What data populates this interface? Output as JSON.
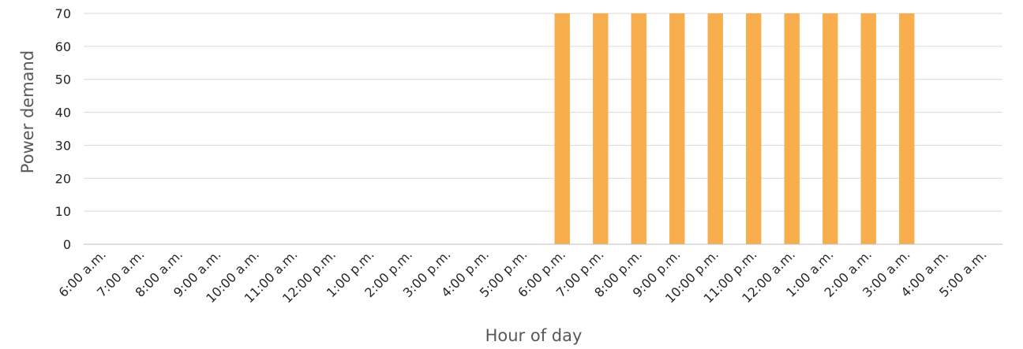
{
  "chart_data": {
    "type": "bar",
    "title": "",
    "xlabel": "Hour of day",
    "ylabel": "Power demand",
    "ylim": [
      0,
      70
    ],
    "yticks": [
      0,
      10,
      20,
      30,
      40,
      50,
      60,
      70
    ],
    "grid": true,
    "legend": "none",
    "bar_color": "#F9AE4E",
    "categories": [
      "6:00 a.m.",
      "7:00 a.m.",
      "8:00 a.m.",
      "9:00 a.m.",
      "10:00 a.m.",
      "11:00 a.m.",
      "12:00 p.m.",
      "1:00 p.m.",
      "2:00 p.m.",
      "3:00 p.m.",
      "4:00 p.m.",
      "5:00 p.m.",
      "6:00 p.m.",
      "7:00 p.m.",
      "8:00 p.m.",
      "9:00 p.m.",
      "10:00 p.m.",
      "11:00 p.m.",
      "12:00 a.m.",
      "1:00 a.m.",
      "2:00 a.m.",
      "3:00 a.m.",
      "4:00 a.m.",
      "5:00 a.m."
    ],
    "values": [
      0,
      0,
      0,
      0,
      0,
      0,
      0,
      0,
      0,
      0,
      0,
      0,
      70,
      70,
      70,
      70,
      70,
      70,
      70,
      70,
      70,
      70,
      0,
      0
    ]
  }
}
